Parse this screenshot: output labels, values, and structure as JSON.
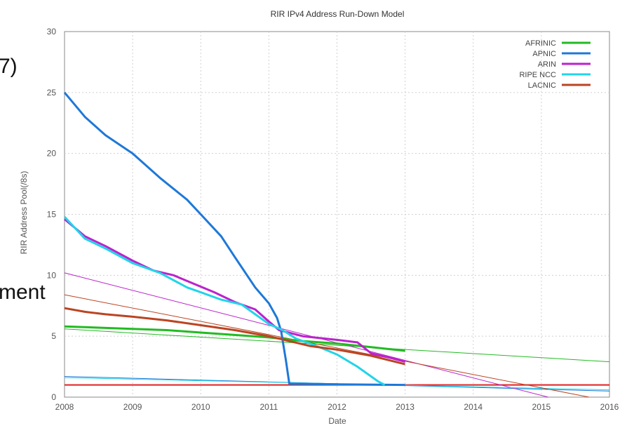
{
  "slide": {
    "fragment_1": "7)",
    "fragment_2": "ment"
  },
  "chart_data": {
    "type": "line",
    "title": "RIR IPv4 Address Run-Down Model",
    "xlabel": "Date",
    "ylabel": "RIR Address Pool(/8s)",
    "xlim": [
      2008,
      2016
    ],
    "ylim": [
      0,
      30
    ],
    "x_ticks": [
      "2008",
      "2009",
      "2010",
      "2011",
      "2012",
      "2013",
      "2014",
      "2015",
      "2016"
    ],
    "y_ticks": [
      "0",
      "5",
      "10",
      "15",
      "20",
      "25",
      "30"
    ],
    "grid": true,
    "legend_position": "top-right",
    "series": [
      {
        "name": "AFRINIC",
        "color": "#22bb22",
        "points": [
          [
            2008.0,
            5.8
          ],
          [
            2008.5,
            5.7
          ],
          [
            2009.0,
            5.6
          ],
          [
            2009.5,
            5.5
          ],
          [
            2010.0,
            5.3
          ],
          [
            2010.5,
            5.1
          ],
          [
            2011.0,
            4.9
          ],
          [
            2011.5,
            4.6
          ],
          [
            2012.0,
            4.4
          ],
          [
            2012.5,
            4.1
          ],
          [
            2013.0,
            3.8
          ]
        ],
        "projection": [
          [
            2008.0,
            5.6
          ],
          [
            2016.0,
            2.9
          ]
        ]
      },
      {
        "name": "APNIC",
        "color": "#1e78d8",
        "points": [
          [
            2008.0,
            25.0
          ],
          [
            2008.3,
            23.0
          ],
          [
            2008.6,
            21.5
          ],
          [
            2009.0,
            20.0
          ],
          [
            2009.4,
            18.0
          ],
          [
            2009.8,
            16.2
          ],
          [
            2010.0,
            15.0
          ],
          [
            2010.3,
            13.2
          ],
          [
            2010.5,
            11.5
          ],
          [
            2010.8,
            9.0
          ],
          [
            2011.0,
            7.7
          ],
          [
            2011.12,
            6.5
          ],
          [
            2011.18,
            5.4
          ],
          [
            2011.25,
            3.0
          ],
          [
            2011.3,
            1.1
          ],
          [
            2012.0,
            1.05
          ],
          [
            2013.0,
            1.0
          ]
        ],
        "projection": [
          [
            2008.0,
            1.7
          ],
          [
            2016.0,
            0.5
          ]
        ]
      },
      {
        "name": "ARIN",
        "color": "#bb22cc",
        "points": [
          [
            2008.0,
            14.6
          ],
          [
            2008.3,
            13.2
          ],
          [
            2008.6,
            12.4
          ],
          [
            2009.0,
            11.2
          ],
          [
            2009.3,
            10.4
          ],
          [
            2009.6,
            10.0
          ],
          [
            2009.9,
            9.3
          ],
          [
            2010.2,
            8.6
          ],
          [
            2010.5,
            7.8
          ],
          [
            2010.8,
            7.2
          ],
          [
            2011.0,
            6.2
          ],
          [
            2011.15,
            5.5
          ],
          [
            2011.5,
            5.0
          ],
          [
            2012.0,
            4.7
          ],
          [
            2012.3,
            4.5
          ],
          [
            2012.5,
            3.6
          ],
          [
            2012.8,
            3.2
          ],
          [
            2013.0,
            2.9
          ]
        ],
        "projection": [
          [
            2008.0,
            10.2
          ],
          [
            2015.1,
            0.0
          ]
        ]
      },
      {
        "name": "RIPE NCC",
        "color": "#22d4e8",
        "points": [
          [
            2008.0,
            14.8
          ],
          [
            2008.3,
            13.0
          ],
          [
            2008.6,
            12.2
          ],
          [
            2009.0,
            11.0
          ],
          [
            2009.4,
            10.2
          ],
          [
            2009.8,
            9.0
          ],
          [
            2010.0,
            8.6
          ],
          [
            2010.3,
            8.0
          ],
          [
            2010.6,
            7.6
          ],
          [
            2010.8,
            6.8
          ],
          [
            2011.0,
            6.0
          ],
          [
            2011.2,
            5.5
          ],
          [
            2011.4,
            4.8
          ],
          [
            2011.7,
            4.2
          ],
          [
            2012.0,
            3.5
          ],
          [
            2012.3,
            2.5
          ],
          [
            2012.6,
            1.3
          ],
          [
            2012.7,
            1.0
          ]
        ],
        "projection": [
          [
            2008.0,
            1.6
          ],
          [
            2016.0,
            0.6
          ]
        ]
      },
      {
        "name": "LACNIC",
        "color": "#bb4422",
        "points": [
          [
            2008.0,
            7.3
          ],
          [
            2008.3,
            7.0
          ],
          [
            2008.6,
            6.8
          ],
          [
            2009.0,
            6.6
          ],
          [
            2009.5,
            6.3
          ],
          [
            2010.0,
            5.9
          ],
          [
            2010.5,
            5.5
          ],
          [
            2011.0,
            5.0
          ],
          [
            2011.3,
            4.6
          ],
          [
            2011.6,
            4.2
          ],
          [
            2012.0,
            3.9
          ],
          [
            2012.5,
            3.4
          ],
          [
            2013.0,
            2.7
          ]
        ],
        "projection": [
          [
            2008.0,
            8.4
          ],
          [
            2015.7,
            0.0
          ]
        ]
      }
    ],
    "baseline": {
      "color": "#e02020",
      "value": 1.0
    }
  }
}
